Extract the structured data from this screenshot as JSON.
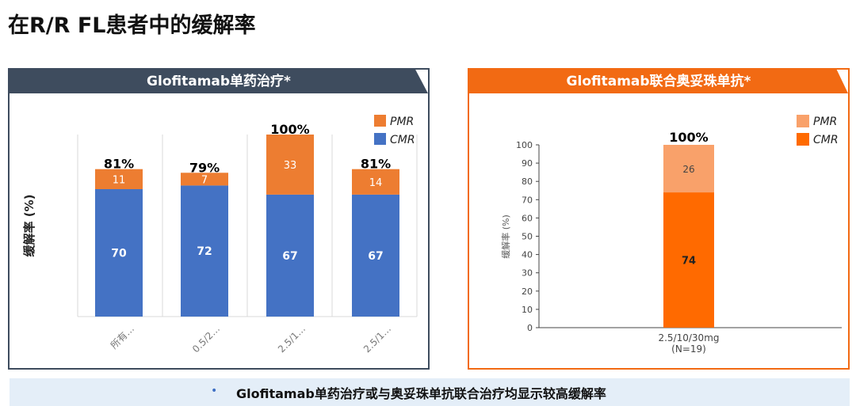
{
  "title": "在R/R FL患者中的缓解率",
  "left_panel": {
    "header": "Glofitamab单药治疗*"
  },
  "right_panel": {
    "header": "Glofitamab联合奥妥珠单抗*"
  },
  "footer": {
    "bullet": "•",
    "text": "Glofitamab单药治疗或与奥妥珠单抗联合治疗均显示较高缓解率"
  },
  "colors": {
    "cmr_left": "#4472c4",
    "pmr_left": "#ed7d31",
    "cmr_right": "#ff6a00",
    "pmr_right": "#f9a16a",
    "left_border": "#3e4c5e",
    "right_border": "#f26a13"
  },
  "chart_data": [
    {
      "type": "bar",
      "stacked": true,
      "ylabel": "缓解率 (%)",
      "categories": [
        "所有…",
        "0.5/2…",
        "2.5/1…",
        "2.5/1…"
      ],
      "series": [
        {
          "name": "CMR",
          "values": [
            70,
            72,
            67,
            67
          ]
        },
        {
          "name": "PMR",
          "values": [
            11,
            7,
            33,
            14
          ]
        }
      ],
      "totals": [
        "81%",
        "79%",
        "100%",
        "81%"
      ],
      "legend": "top-right",
      "grid": false,
      "ylim": [
        0,
        100
      ]
    },
    {
      "type": "bar",
      "stacked": true,
      "ylabel": "缓解率 (%)",
      "categories": [
        "2.5/10/30mg"
      ],
      "category_sublabels": [
        "(N=19)"
      ],
      "series": [
        {
          "name": "CMR",
          "values": [
            74
          ]
        },
        {
          "name": "PMR",
          "values": [
            26
          ]
        }
      ],
      "totals": [
        "100%"
      ],
      "legend": "top-right",
      "grid": false,
      "ylim": [
        0,
        100
      ],
      "yticks": [
        0,
        10,
        20,
        30,
        40,
        50,
        60,
        70,
        80,
        90,
        100
      ]
    }
  ]
}
